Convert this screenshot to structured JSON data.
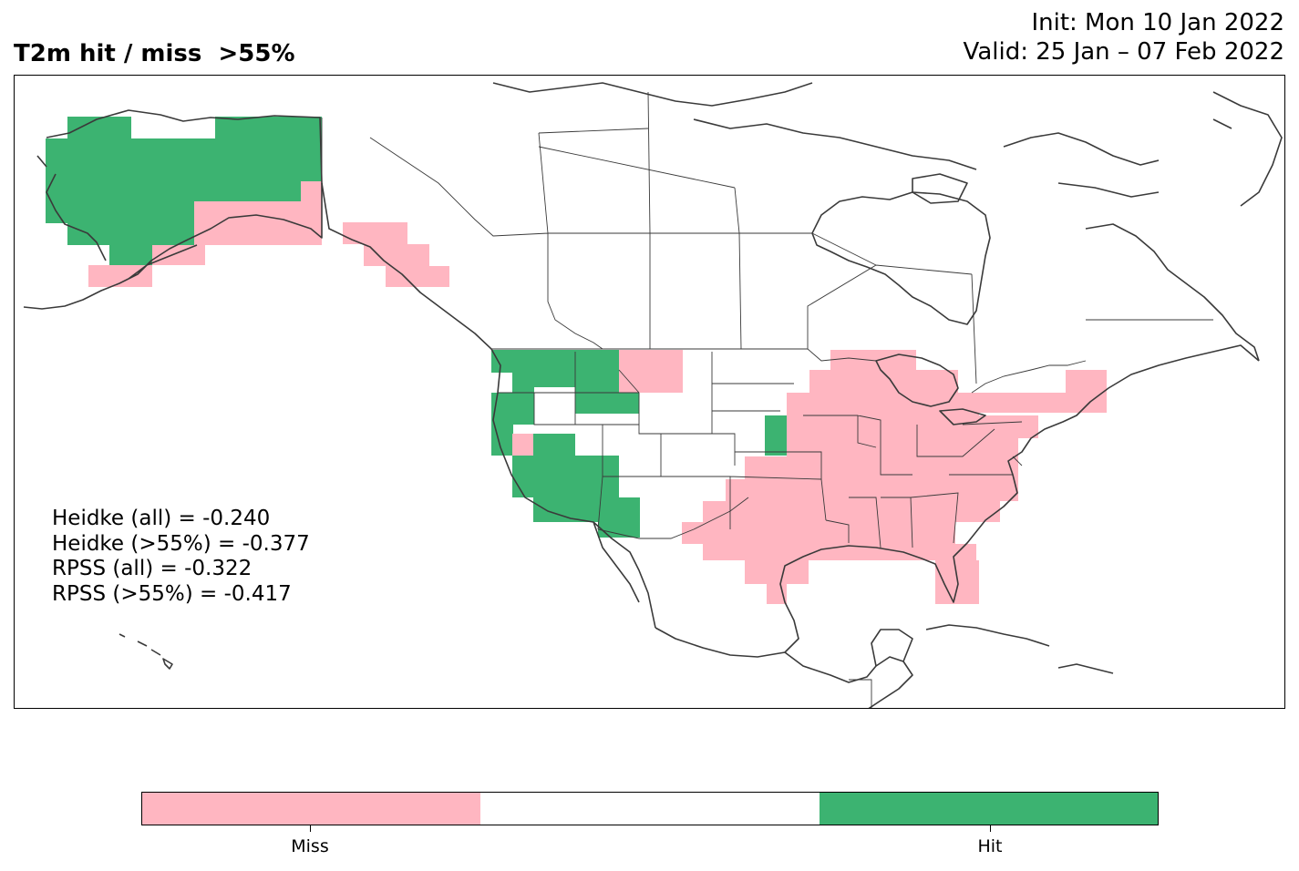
{
  "header": {
    "title": "T2m hit / miss  >55%",
    "init": "Init: Mon 10 Jan 2022",
    "valid": "Valid: 25 Jan – 07 Feb 2022"
  },
  "stats": {
    "heidke_all": "Heidke (all) = -0.240",
    "heidke_55": "Heidke (>55%) = -0.377",
    "rpss_all": "RPSS (all) = -0.322",
    "rpss_55": "RPSS (>55%) = -0.417"
  },
  "colors": {
    "miss": "#FFB6C1",
    "neutral": "#FFFFFF",
    "hit": "#3CB371",
    "outline": "#3a3a3a"
  },
  "colorbar": {
    "miss_label": "Miss",
    "hit_label": "Hit"
  }
}
